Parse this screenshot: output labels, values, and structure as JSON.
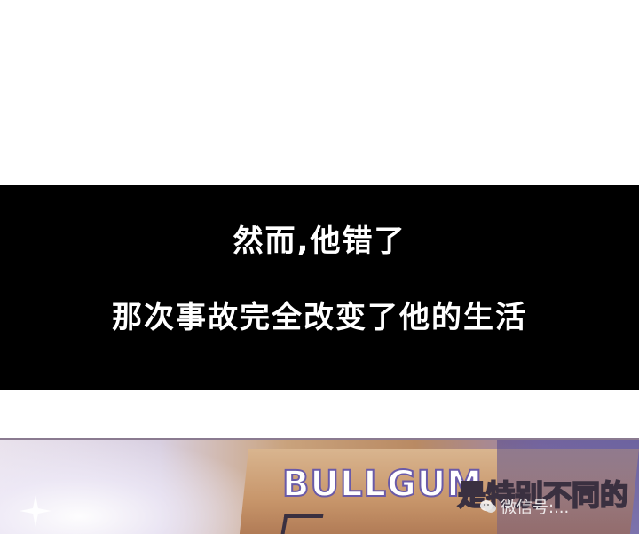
{
  "caption": {
    "line1": "然而,他错了",
    "line2": "那次事故完全改变了他的生活"
  },
  "panel": {
    "sign_brand": "BULLGUM",
    "sign_text": "是特别不同的",
    "watermark_text": "微信号:..."
  },
  "colors": {
    "caption_bg": "#000000",
    "caption_text": "#ffffff",
    "sign_outline": "#6a5aa8"
  },
  "icons": {
    "watermark": "wechat-icon",
    "sparkle": "sparkle-icon"
  }
}
